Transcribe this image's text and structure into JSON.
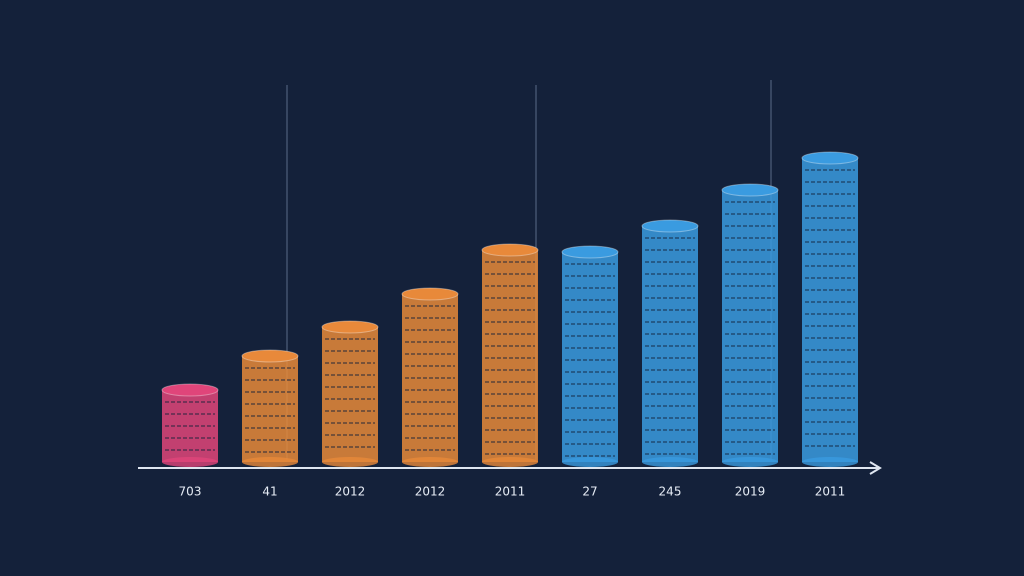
{
  "chart_data": {
    "type": "bar",
    "categories": [
      "703",
      "41",
      "2012",
      "2012",
      "2011",
      "27",
      "245",
      "2019",
      "2011"
    ],
    "values": [
      72,
      106,
      135,
      168,
      212,
      210,
      236,
      272,
      304
    ],
    "colors": [
      "#e0457a",
      "#e8893a",
      "#e8893a",
      "#e8893a",
      "#e8893a",
      "#3a9be0",
      "#3a9be0",
      "#3a9be0",
      "#3a9be0"
    ],
    "ylim": [
      0,
      400
    ]
  }
}
